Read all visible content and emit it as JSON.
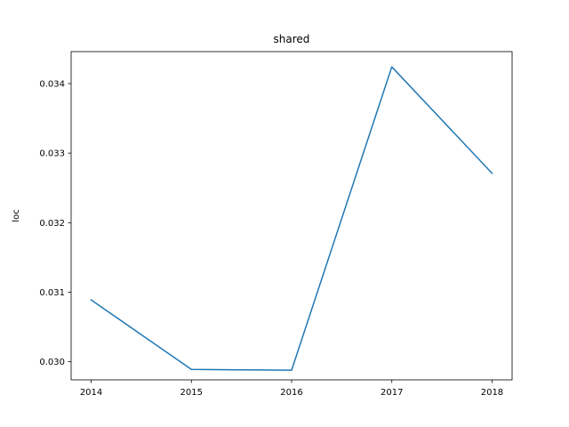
{
  "chart_data": {
    "type": "line",
    "title": "shared",
    "xlabel": "",
    "ylabel": "loc",
    "x": [
      2014,
      2015,
      2016,
      2017,
      2018
    ],
    "series": [
      {
        "values": [
          0.03089,
          0.02989,
          0.02988,
          0.03424,
          0.03271
        ]
      }
    ],
    "x_ticks": [
      "2014",
      "2015",
      "2016",
      "2017",
      "2018"
    ],
    "y_ticks": [
      0.03,
      0.031,
      0.032,
      0.033,
      0.034
    ],
    "y_tick_labels": [
      "0.030",
      "0.031",
      "0.032",
      "0.033",
      "0.034"
    ],
    "xlim": [
      2013.8,
      2018.2
    ],
    "ylim": [
      0.02974,
      0.03446
    ],
    "grid": false,
    "colors": {
      "line": "#1f77b4",
      "axes": "#000000",
      "background": "#ffffff"
    }
  }
}
